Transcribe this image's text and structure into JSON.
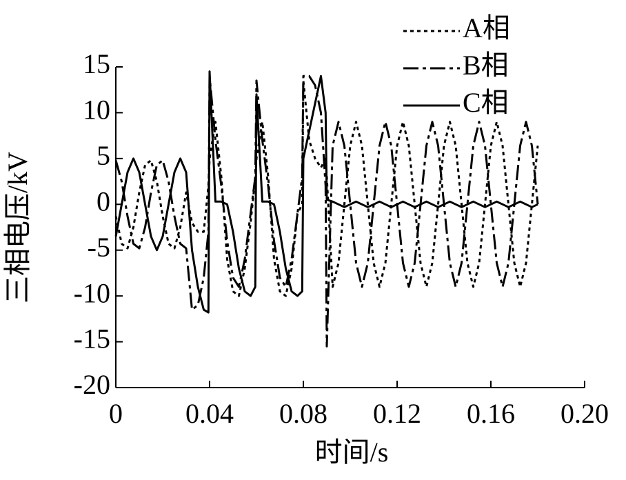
{
  "chart_data": {
    "type": "line",
    "xlabel": "时间/s",
    "ylabel": "三相电压/kV",
    "xlim": [
      0,
      0.2
    ],
    "ylim": [
      -20,
      15
    ],
    "xticks": [
      0,
      0.04,
      0.08,
      0.12,
      0.16,
      {
        "value": 0.2,
        "label": "0.20"
      }
    ],
    "yticks": [
      -20,
      -15,
      -10,
      -5,
      0,
      5,
      10,
      15
    ],
    "legend": "top-right",
    "x": [
      0,
      0.0025,
      0.005,
      0.0075,
      0.01,
      0.0125,
      0.015,
      0.0175,
      0.02,
      0.0225,
      0.025,
      0.0275,
      0.03,
      0.0325,
      0.035,
      0.0375,
      0.0395,
      0.04,
      0.0425,
      0.045,
      0.0475,
      0.05,
      0.0525,
      0.055,
      0.0575,
      0.0595,
      0.06,
      0.0625,
      0.065,
      0.0675,
      0.07,
      0.0725,
      0.075,
      0.0775,
      0.0795,
      0.08,
      0.0825,
      0.085,
      0.0875,
      0.0895,
      0.09,
      0.0925,
      0.095,
      0.0975,
      0.1,
      0.1025,
      0.105,
      0.1075,
      0.11,
      0.1125,
      0.115,
      0.1175,
      0.12,
      0.1225,
      0.125,
      0.1275,
      0.13,
      0.1325,
      0.135,
      0.1375,
      0.14,
      0.1425,
      0.145,
      0.1475,
      0.15,
      0.1525,
      0.155,
      0.1575,
      0.16,
      0.1625,
      0.165,
      0.1675,
      0.17,
      0.1725,
      0.175,
      0.1775,
      0.18
    ],
    "series": [
      {
        "name": "A相",
        "color": "#000000",
        "style": "dotted",
        "values": [
          -1.3,
          -4.3,
          -4.8,
          -2.5,
          1.3,
          4.3,
          4.8,
          2.5,
          -1.3,
          -4.3,
          -4.8,
          -2.5,
          1.3,
          -2,
          -3,
          -3,
          2,
          5,
          9,
          3,
          -6,
          -9.5,
          -10,
          -7,
          -2,
          3,
          5,
          9,
          3,
          -6,
          -9.5,
          -10,
          -7,
          -1,
          0,
          13.5,
          7,
          5,
          4,
          5,
          3,
          -9,
          -6.4,
          0,
          6.4,
          9,
          6.4,
          0,
          -6.4,
          -9,
          -6.4,
          0,
          6.4,
          9,
          6.4,
          0,
          -6.4,
          -9,
          -6.4,
          0,
          6.4,
          9,
          6.4,
          0,
          -6.4,
          -9,
          -6.4,
          0,
          6.4,
          9,
          6.4,
          0,
          -6.4,
          -9,
          -6.4,
          0,
          6.4
        ]
      },
      {
        "name": "B相",
        "color": "#000000",
        "style": "dashdot",
        "values": [
          4.8,
          2.5,
          -1.3,
          -4.3,
          -4.8,
          -2.5,
          1.3,
          4.3,
          4.8,
          2.5,
          -1.3,
          -4.3,
          -4.8,
          -11.5,
          -11,
          -8,
          -3,
          14,
          7,
          2,
          -4,
          -8,
          -9,
          -6,
          -1,
          3,
          13.5,
          7,
          2,
          -4,
          -8,
          -9,
          -6,
          -1,
          3,
          14,
          14,
          13,
          10,
          2,
          -15.5,
          6.4,
          9,
          6.4,
          0,
          -6.4,
          -9,
          -6.4,
          0,
          6.4,
          9,
          6.4,
          0,
          -6.4,
          -9,
          -6.4,
          0,
          6.4,
          9,
          6.4,
          0,
          -6.4,
          -9,
          -6.4,
          0,
          6.4,
          9,
          6.4,
          0,
          -6.4,
          -9,
          -6.4,
          0,
          6.4,
          9,
          6.4,
          0
        ]
      },
      {
        "name": "C相",
        "color": "#000000",
        "style": "solid",
        "values": [
          -3.5,
          0,
          3.5,
          5,
          3.5,
          0,
          -3.5,
          -5,
          -3.5,
          0,
          3.5,
          5,
          3.5,
          -5,
          -9,
          -11.5,
          -11.8,
          14.5,
          0.3,
          0.3,
          0,
          -3,
          -7,
          -9.5,
          -10,
          -9,
          12,
          0.3,
          0.3,
          0,
          -3,
          -7,
          -9.5,
          -10,
          -9.5,
          5,
          8,
          11,
          14,
          10,
          0.5,
          0.3,
          0,
          -0.3,
          0,
          0.3,
          0,
          -0.3,
          0,
          0.3,
          0,
          -0.3,
          0,
          0.3,
          0,
          -0.3,
          0,
          0.3,
          0,
          -0.3,
          0,
          0.3,
          0,
          -0.3,
          0,
          0.3,
          0,
          -0.3,
          0,
          0.3,
          0,
          -0.3,
          0,
          0.3,
          0,
          -0.3,
          0
        ]
      }
    ]
  }
}
